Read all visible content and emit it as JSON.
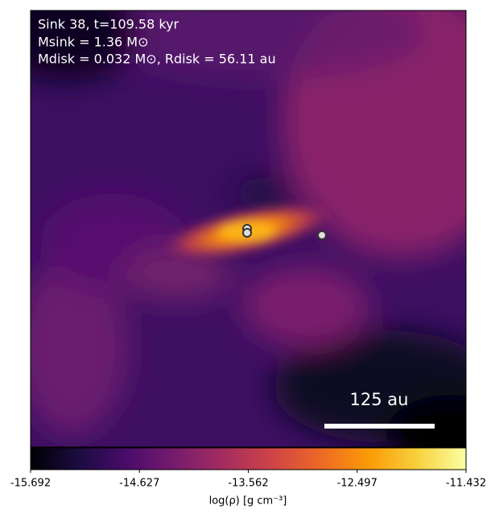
{
  "chart_data": {
    "type": "image",
    "annotations": [
      "Sink 38, t=109.58 kyr",
      "Msink = 1.36 M⊙",
      "Mdisk = 0.032 M⊙, Rdisk = 56.11 au"
    ],
    "scale_bar_label": "125 au",
    "colorbar": {
      "label": "log(ρ) [g cm⁻³]",
      "colormap": "inferno",
      "xlim": [
        -15.692,
        -11.432
      ],
      "xticks": [
        -15.692,
        -14.627,
        -13.562,
        -12.497,
        -11.432
      ]
    }
  }
}
